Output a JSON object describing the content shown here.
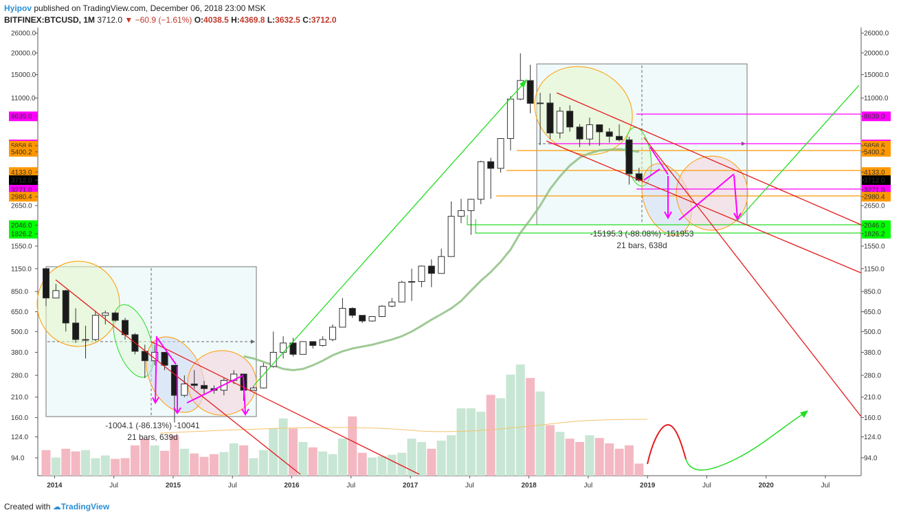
{
  "header": {
    "author": "Hyipov",
    "published_text": "published on TradingView.com, December 06, 2018 23:00 MSK",
    "symbol": "BITFINEX:BTCUSD, 1M",
    "last": "3712.0",
    "change": "−60.9 (−1.61%)",
    "o_label": "O:",
    "o_value": "4038.5",
    "h_label": "H:",
    "h_value": "4369.8",
    "l_label": "L:",
    "l_value": "3632.5",
    "c_label": "C:",
    "c_value": "3712.0"
  },
  "footer": {
    "created_with": "Created with",
    "brand": "TradingView"
  },
  "colors": {
    "up": "#ffffff",
    "down": "#1a1a1a",
    "vol_up": "#c8e6d4",
    "vol_down": "#f4b8c2",
    "ma": "#8fbf82",
    "red_line": "#e31a1c",
    "green_line": "#22dd22",
    "magenta": "#ff00ff",
    "orange": "#ff9800"
  },
  "chart_data": {
    "type": "candlestick",
    "title": "BITFINEX:BTCUSD, 1M",
    "y_scale": "log",
    "y_tick_labels": [
      "26000.0",
      "20000.0",
      "15000.0",
      "11000.0",
      "8639.0",
      "5955.0",
      "5858.6",
      "5400.2",
      "4133.0",
      "3712.0",
      "3271.0",
      "2980.4",
      "2650.0",
      "2046.0",
      "1826.2",
      "1550.0",
      "1150.0",
      "850.0",
      "650.0",
      "500.0",
      "380.0",
      "280.0",
      "210.0",
      "160.0",
      "124.0",
      "94.0"
    ],
    "y_tick_values": [
      26000,
      20000,
      15000,
      11000,
      8639,
      5955,
      5858.6,
      5400.2,
      4133,
      3712,
      3271,
      2980.4,
      2650,
      2046,
      1826.2,
      1550,
      1150,
      850,
      650,
      500,
      380,
      280,
      210,
      160,
      124,
      94
    ],
    "y_tag_kinds": [
      "",
      "",
      "",
      "",
      "magenta",
      "magenta",
      "orange",
      "orange",
      "orange",
      "black",
      "magenta",
      "orange",
      "",
      "green",
      "green",
      "",
      "",
      "",
      "",
      "",
      "",
      "",
      "",
      "",
      "",
      ""
    ],
    "x_tick_labels": [
      "2014",
      "Jul",
      "2015",
      "Jul",
      "2016",
      "Jul",
      "2017",
      "Jul",
      "2018",
      "Jul",
      "2019",
      "Jul",
      "2020",
      "Jul"
    ],
    "months": [
      "2013-12",
      "2014-01",
      "2014-02",
      "2014-03",
      "2014-04",
      "2014-05",
      "2014-06",
      "2014-07",
      "2014-08",
      "2014-09",
      "2014-10",
      "2014-11",
      "2014-12",
      "2015-01",
      "2015-02",
      "2015-03",
      "2015-04",
      "2015-05",
      "2015-06",
      "2015-07",
      "2015-08",
      "2015-09",
      "2015-10",
      "2015-11",
      "2015-12",
      "2016-01",
      "2016-02",
      "2016-03",
      "2016-04",
      "2016-05",
      "2016-06",
      "2016-07",
      "2016-08",
      "2016-09",
      "2016-10",
      "2016-11",
      "2016-12",
      "2017-01",
      "2017-02",
      "2017-03",
      "2017-04",
      "2017-05",
      "2017-06",
      "2017-07",
      "2017-08",
      "2017-09",
      "2017-10",
      "2017-11",
      "2017-12",
      "2018-01",
      "2018-02",
      "2018-03",
      "2018-04",
      "2018-05",
      "2018-06",
      "2018-07",
      "2018-08",
      "2018-09",
      "2018-10",
      "2018-11",
      "2018-12"
    ],
    "ohlc": [
      [
        1150,
        1160,
        700,
        780
      ],
      [
        780,
        940,
        780,
        860
      ],
      [
        860,
        870,
        500,
        560
      ],
      [
        560,
        680,
        430,
        450
      ],
      [
        450,
        540,
        350,
        450
      ],
      [
        450,
        660,
        440,
        620
      ],
      [
        620,
        660,
        550,
        640
      ],
      [
        640,
        650,
        570,
        580
      ],
      [
        580,
        600,
        450,
        480
      ],
      [
        480,
        490,
        370,
        385
      ],
      [
        385,
        420,
        270,
        340
      ],
      [
        340,
        420,
        320,
        380
      ],
      [
        380,
        380,
        300,
        320
      ],
      [
        320,
        320,
        150,
        215
      ],
      [
        215,
        280,
        210,
        250
      ],
      [
        250,
        300,
        235,
        245
      ],
      [
        245,
        260,
        220,
        235
      ],
      [
        235,
        245,
        220,
        230
      ],
      [
        230,
        270,
        215,
        262
      ],
      [
        262,
        300,
        250,
        285
      ],
      [
        285,
        285,
        200,
        230
      ],
      [
        230,
        245,
        230,
        237
      ],
      [
        237,
        330,
        235,
        315
      ],
      [
        315,
        500,
        310,
        380
      ],
      [
        380,
        470,
        350,
        430
      ],
      [
        430,
        460,
        360,
        370
      ],
      [
        370,
        440,
        370,
        438
      ],
      [
        438,
        440,
        400,
        416
      ],
      [
        416,
        470,
        410,
        450
      ],
      [
        450,
        550,
        440,
        530
      ],
      [
        530,
        780,
        530,
        680
      ],
      [
        680,
        690,
        600,
        620
      ],
      [
        620,
        620,
        560,
        575
      ],
      [
        575,
        610,
        570,
        610
      ],
      [
        610,
        710,
        605,
        700
      ],
      [
        700,
        780,
        690,
        740
      ],
      [
        740,
        980,
        740,
        960
      ],
      [
        960,
        1150,
        750,
        970
      ],
      [
        970,
        1200,
        900,
        1190
      ],
      [
        1190,
        1300,
        900,
        1080
      ],
      [
        1080,
        1500,
        1080,
        1350
      ],
      [
        1350,
        2800,
        1350,
        2300
      ],
      [
        2300,
        2900,
        2100,
        2480
      ],
      [
        2480,
        2900,
        1800,
        2880
      ],
      [
        2880,
        4800,
        2700,
        4740
      ],
      [
        4740,
        5000,
        2900,
        4340
      ],
      [
        4340,
        6450,
        4100,
        6440
      ],
      [
        6440,
        11300,
        5500,
        10860
      ],
      [
        10860,
        19900,
        10700,
        13880
      ],
      [
        13880,
        17100,
        9000,
        10260
      ],
      [
        10260,
        11800,
        5900,
        10310
      ],
      [
        10310,
        11700,
        6400,
        6930
      ],
      [
        6930,
        9770,
        6440,
        9250
      ],
      [
        9250,
        10000,
        7050,
        7500
      ],
      [
        7500,
        7800,
        5750,
        6400
      ],
      [
        6400,
        8500,
        5850,
        7730
      ],
      [
        7730,
        7770,
        5850,
        7030
      ],
      [
        7030,
        7400,
        6100,
        6630
      ],
      [
        6630,
        7780,
        6200,
        6330
      ],
      [
        6330,
        6600,
        3500,
        4040
      ],
      [
        4040,
        4370,
        3630,
        3712
      ]
    ],
    "volumes": [
      38,
      27,
      40,
      36,
      38,
      26,
      30,
      25,
      26,
      45,
      55,
      45,
      37,
      60,
      40,
      33,
      28,
      32,
      35,
      48,
      45,
      26,
      38,
      70,
      85,
      70,
      50,
      42,
      36,
      32,
      55,
      88,
      34,
      27,
      29,
      31,
      34,
      55,
      50,
      40,
      52,
      60,
      100,
      100,
      95,
      120,
      115,
      150,
      165,
      145,
      125,
      75,
      65,
      55,
      50,
      60,
      56,
      48,
      40,
      45,
      18
    ],
    "ma_values": [
      null,
      null,
      null,
      null,
      null,
      null,
      null,
      null,
      null,
      null,
      null,
      null,
      null,
      null,
      null,
      null,
      null,
      null,
      null,
      null,
      360,
      350,
      335,
      320,
      305,
      300,
      305,
      320,
      340,
      365,
      385,
      400,
      410,
      420,
      435,
      450,
      470,
      500,
      540,
      585,
      630,
      680,
      750,
      860,
      980,
      1100,
      1260,
      1480,
      1850,
      2200,
      2650,
      3300,
      3900,
      4500,
      5000,
      5300,
      5500,
      5550,
      5600,
      5500,
      5400
    ],
    "annotations": {
      "box1_line1": "-1004.1 (-86.13%) -10041",
      "box1_line2": "21 bars, 639d",
      "box2_line1": "-15195.3 (-88.08%) -151953",
      "box2_line2": "21 bars, 638d"
    }
  }
}
